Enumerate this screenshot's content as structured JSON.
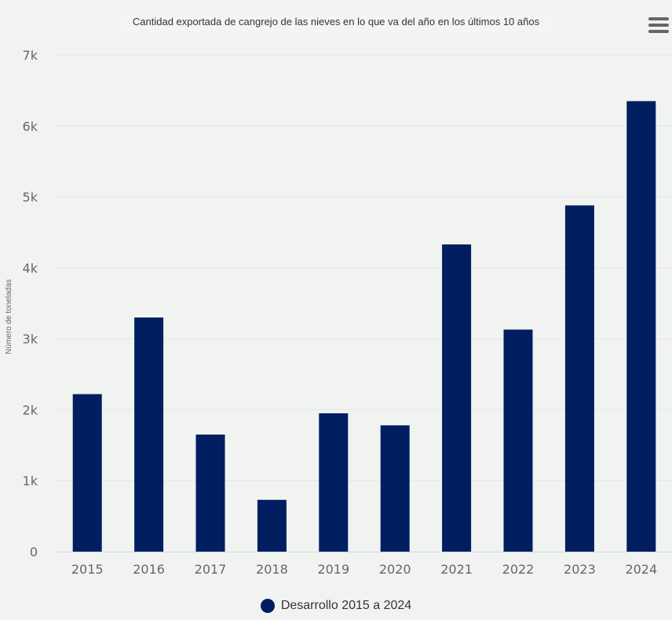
{
  "chart_data": {
    "type": "bar",
    "title": "Cantidad exportada de cangrejo de las nieves en lo que va del año en los últimos 10 años",
    "ylabel": "Número de toneladas",
    "xlabel": "",
    "categories": [
      "2015",
      "2016",
      "2017",
      "2018",
      "2019",
      "2020",
      "2021",
      "2022",
      "2023",
      "2024"
    ],
    "series": [
      {
        "name": "Desarrollo 2015 a 2024",
        "values": [
          2220,
          3300,
          1650,
          730,
          1950,
          1780,
          4330,
          3130,
          4880,
          6350
        ]
      }
    ],
    "ylim": [
      0,
      7000
    ],
    "yticks": [
      0,
      1000,
      2000,
      3000,
      4000,
      5000,
      6000,
      7000
    ],
    "ytick_labels": [
      "0",
      "1k",
      "2k",
      "3k",
      "4k",
      "5k",
      "6k",
      "7k"
    ],
    "grid": true,
    "legend_position": "bottom-center",
    "colors": {
      "bar": "#001e60",
      "grid": "#e2e6e6",
      "axis": "#ccd6eb"
    }
  },
  "menu": {
    "icon": "menu-icon"
  }
}
